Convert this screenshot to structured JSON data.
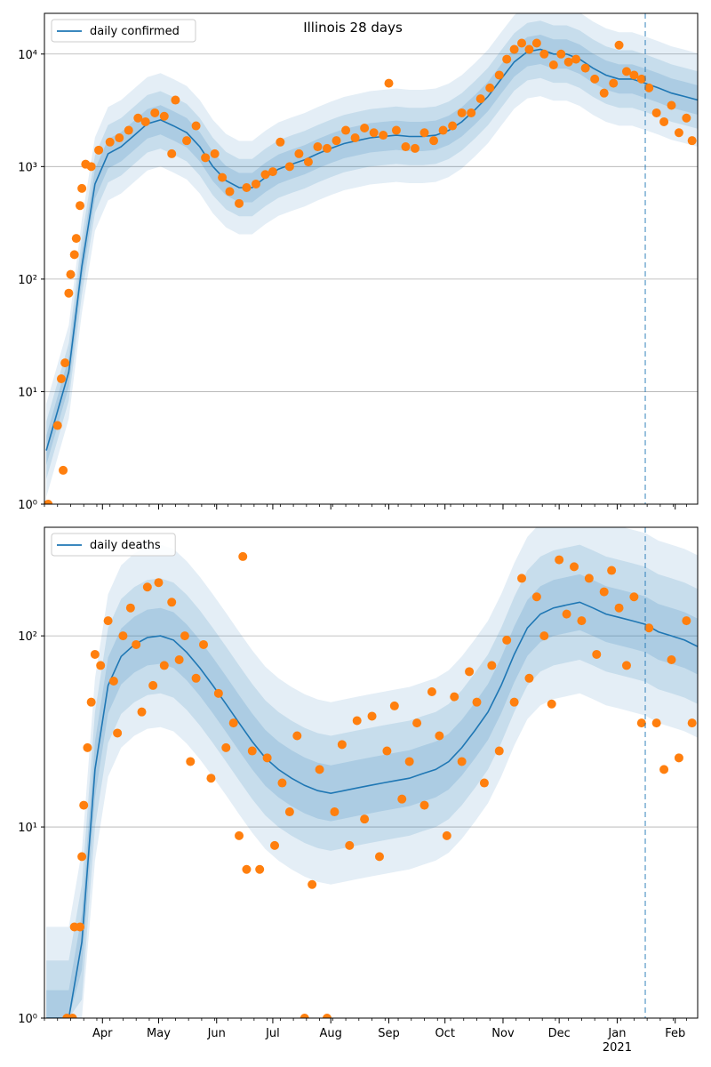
{
  "figure_title": "Illinois 28 days",
  "colors": {
    "line": "#1f77b4",
    "points": "#ff7f0e",
    "band": "#1f77b4",
    "grid": "#b0b0b0",
    "vline": "#1f77b4"
  },
  "chart_data": [
    {
      "type": "scatter",
      "title": "Illinois 28 days",
      "yscale": "log",
      "ylim": [
        1,
        23000
      ],
      "yticks": [
        {
          "value": 1,
          "label": "10⁰"
        },
        {
          "value": 10,
          "label": "10¹"
        },
        {
          "value": 100,
          "label": "10²"
        },
        {
          "value": 1000,
          "label": "10³"
        },
        {
          "value": 10000,
          "label": "10⁴"
        }
      ],
      "grid": "horizontal",
      "legend_position": "top-left",
      "series": [
        {
          "name": "daily confirmed",
          "kind": "line"
        }
      ],
      "x_dates": [
        "2020-03-02",
        "2020-03-14",
        "2020-03-21",
        "2020-03-28",
        "2020-04-04",
        "2020-04-11",
        "2020-04-18",
        "2020-04-25",
        "2020-05-02",
        "2020-05-09",
        "2020-05-16",
        "2020-05-23",
        "2020-05-30",
        "2020-06-06",
        "2020-06-13",
        "2020-06-20",
        "2020-06-27",
        "2020-07-04",
        "2020-07-11",
        "2020-07-18",
        "2020-07-25",
        "2020-08-01",
        "2020-08-08",
        "2020-08-15",
        "2020-08-22",
        "2020-08-29",
        "2020-09-05",
        "2020-09-12",
        "2020-09-19",
        "2020-09-26",
        "2020-10-03",
        "2020-10-10",
        "2020-10-17",
        "2020-10-24",
        "2020-10-31",
        "2020-11-07",
        "2020-11-14",
        "2020-11-21",
        "2020-11-28",
        "2020-12-05",
        "2020-12-12",
        "2020-12-19",
        "2020-12-26",
        "2021-01-02",
        "2021-01-09",
        "2021-01-16",
        "2021-01-23",
        "2021-01-30",
        "2021-02-06",
        "2021-02-13"
      ],
      "median": [
        3,
        15,
        130,
        700,
        1300,
        1500,
        1900,
        2400,
        2600,
        2300,
        2000,
        1500,
        1000,
        750,
        650,
        650,
        800,
        950,
        1050,
        1150,
        1300,
        1450,
        1600,
        1700,
        1800,
        1850,
        1900,
        1850,
        1850,
        1900,
        2100,
        2500,
        3200,
        4200,
        6000,
        8500,
        10500,
        11000,
        10000,
        10000,
        9000,
        7500,
        6500,
        6000,
        6000,
        5500,
        5000,
        4500,
        4200,
        3900
      ],
      "band_factors": [
        1.35,
        1.8,
        2.6
      ],
      "observed": [
        {
          "date": "2020-03-03",
          "y": 1
        },
        {
          "date": "2020-03-08",
          "y": 5
        },
        {
          "date": "2020-03-11",
          "y": 2
        },
        {
          "date": "2020-03-10",
          "y": 13
        },
        {
          "date": "2020-03-12",
          "y": 18
        },
        {
          "date": "2020-03-14",
          "y": 75
        },
        {
          "date": "2020-03-15",
          "y": 110
        },
        {
          "date": "2020-03-17",
          "y": 165
        },
        {
          "date": "2020-03-18",
          "y": 230
        },
        {
          "date": "2020-03-20",
          "y": 450
        },
        {
          "date": "2020-03-21",
          "y": 640
        },
        {
          "date": "2020-03-23",
          "y": 1050
        },
        {
          "date": "2020-03-26",
          "y": 1000
        },
        {
          "date": "2020-03-30",
          "y": 1400
        },
        {
          "date": "2020-04-05",
          "y": 1650
        },
        {
          "date": "2020-04-10",
          "y": 1800
        },
        {
          "date": "2020-04-15",
          "y": 2100
        },
        {
          "date": "2020-04-20",
          "y": 2700
        },
        {
          "date": "2020-04-24",
          "y": 2500
        },
        {
          "date": "2020-04-29",
          "y": 3000
        },
        {
          "date": "2020-05-04",
          "y": 2800
        },
        {
          "date": "2020-05-10",
          "y": 3900
        },
        {
          "date": "2020-05-08",
          "y": 1300
        },
        {
          "date": "2020-05-16",
          "y": 1700
        },
        {
          "date": "2020-05-21",
          "y": 2300
        },
        {
          "date": "2020-05-26",
          "y": 1200
        },
        {
          "date": "2020-05-31",
          "y": 1300
        },
        {
          "date": "2020-06-04",
          "y": 800
        },
        {
          "date": "2020-06-08",
          "y": 600
        },
        {
          "date": "2020-06-13",
          "y": 470
        },
        {
          "date": "2020-06-17",
          "y": 650
        },
        {
          "date": "2020-06-22",
          "y": 700
        },
        {
          "date": "2020-06-27",
          "y": 850
        },
        {
          "date": "2020-07-01",
          "y": 900
        },
        {
          "date": "2020-07-05",
          "y": 1650
        },
        {
          "date": "2020-07-10",
          "y": 1000
        },
        {
          "date": "2020-07-15",
          "y": 1300
        },
        {
          "date": "2020-07-20",
          "y": 1100
        },
        {
          "date": "2020-07-25",
          "y": 1500
        },
        {
          "date": "2020-07-30",
          "y": 1450
        },
        {
          "date": "2020-08-04",
          "y": 1700
        },
        {
          "date": "2020-08-09",
          "y": 2100
        },
        {
          "date": "2020-08-14",
          "y": 1800
        },
        {
          "date": "2020-08-19",
          "y": 2200
        },
        {
          "date": "2020-08-24",
          "y": 2000
        },
        {
          "date": "2020-08-29",
          "y": 1900
        },
        {
          "date": "2020-09-01",
          "y": 5500
        },
        {
          "date": "2020-09-05",
          "y": 2100
        },
        {
          "date": "2020-09-10",
          "y": 1500
        },
        {
          "date": "2020-09-15",
          "y": 1450
        },
        {
          "date": "2020-09-20",
          "y": 2000
        },
        {
          "date": "2020-09-25",
          "y": 1700
        },
        {
          "date": "2020-09-30",
          "y": 2100
        },
        {
          "date": "2020-10-05",
          "y": 2300
        },
        {
          "date": "2020-10-10",
          "y": 3000
        },
        {
          "date": "2020-10-15",
          "y": 3000
        },
        {
          "date": "2020-10-20",
          "y": 4000
        },
        {
          "date": "2020-10-25",
          "y": 5000
        },
        {
          "date": "2020-10-30",
          "y": 6500
        },
        {
          "date": "2020-11-03",
          "y": 9000
        },
        {
          "date": "2020-11-07",
          "y": 11000
        },
        {
          "date": "2020-11-11",
          "y": 12500
        },
        {
          "date": "2020-11-15",
          "y": 11000
        },
        {
          "date": "2020-11-19",
          "y": 12500
        },
        {
          "date": "2020-11-23",
          "y": 10000
        },
        {
          "date": "2020-11-28",
          "y": 8000
        },
        {
          "date": "2020-12-02",
          "y": 10000
        },
        {
          "date": "2020-12-06",
          "y": 8500
        },
        {
          "date": "2020-12-10",
          "y": 9000
        },
        {
          "date": "2020-12-15",
          "y": 7500
        },
        {
          "date": "2020-12-20",
          "y": 6000
        },
        {
          "date": "2020-12-25",
          "y": 4500
        },
        {
          "date": "2020-12-30",
          "y": 5500
        },
        {
          "date": "2021-01-02",
          "y": 12000
        },
        {
          "date": "2021-01-06",
          "y": 7000
        },
        {
          "date": "2021-01-10",
          "y": 6500
        },
        {
          "date": "2021-01-14",
          "y": 6000
        },
        {
          "date": "2021-01-18",
          "y": 5000
        },
        {
          "date": "2021-01-22",
          "y": 3000
        },
        {
          "date": "2021-01-26",
          "y": 2500
        },
        {
          "date": "2021-01-30",
          "y": 3500
        },
        {
          "date": "2021-02-03",
          "y": 2000
        },
        {
          "date": "2021-02-07",
          "y": 2700
        },
        {
          "date": "2021-02-10",
          "y": 1700
        }
      ]
    },
    {
      "type": "scatter",
      "yscale": "log",
      "ylim": [
        1,
        370
      ],
      "yticks": [
        {
          "value": 1,
          "label": "10⁰"
        },
        {
          "value": 10,
          "label": "10¹"
        },
        {
          "value": 100,
          "label": "10²"
        }
      ],
      "grid": "horizontal",
      "legend_position": "top-left",
      "series": [
        {
          "name": "daily deaths",
          "kind": "line"
        }
      ],
      "x_dates": [
        "2020-03-02",
        "2020-03-14",
        "2020-03-21",
        "2020-03-28",
        "2020-04-04",
        "2020-04-11",
        "2020-04-18",
        "2020-04-25",
        "2020-05-02",
        "2020-05-09",
        "2020-05-16",
        "2020-05-23",
        "2020-05-30",
        "2020-06-06",
        "2020-06-13",
        "2020-06-20",
        "2020-06-27",
        "2020-07-04",
        "2020-07-11",
        "2020-07-18",
        "2020-07-25",
        "2020-08-01",
        "2020-08-08",
        "2020-08-15",
        "2020-08-22",
        "2020-08-29",
        "2020-09-05",
        "2020-09-12",
        "2020-09-19",
        "2020-09-26",
        "2020-10-03",
        "2020-10-10",
        "2020-10-17",
        "2020-10-24",
        "2020-10-31",
        "2020-11-07",
        "2020-11-14",
        "2020-11-21",
        "2020-11-28",
        "2020-12-05",
        "2020-12-12",
        "2020-12-19",
        "2020-12-26",
        "2021-01-02",
        "2021-01-09",
        "2021-01-16",
        "2021-01-23",
        "2021-01-30",
        "2021-02-06",
        "2021-02-13"
      ],
      "median": [
        1,
        1,
        2.5,
        20,
        55,
        78,
        90,
        98,
        100,
        95,
        82,
        68,
        55,
        44,
        35,
        28,
        23,
        20,
        18,
        16.5,
        15.5,
        15,
        15.5,
        16,
        16.5,
        17,
        17.5,
        18,
        19,
        20,
        22,
        26,
        32,
        40,
        55,
        80,
        110,
        130,
        140,
        145,
        150,
        140,
        130,
        125,
        120,
        115,
        105,
        100,
        95,
        88
      ],
      "band_factors": [
        1.4,
        2.0,
        3.0
      ],
      "observed": [
        {
          "date": "2020-03-13",
          "y": 1
        },
        {
          "date": "2020-03-16",
          "y": 1
        },
        {
          "date": "2020-03-17",
          "y": 3
        },
        {
          "date": "2020-03-20",
          "y": 3
        },
        {
          "date": "2020-03-21",
          "y": 7
        },
        {
          "date": "2020-03-22",
          "y": 13
        },
        {
          "date": "2020-03-24",
          "y": 26
        },
        {
          "date": "2020-03-26",
          "y": 45
        },
        {
          "date": "2020-03-28",
          "y": 80
        },
        {
          "date": "2020-03-31",
          "y": 70
        },
        {
          "date": "2020-04-04",
          "y": 120
        },
        {
          "date": "2020-04-07",
          "y": 58
        },
        {
          "date": "2020-04-09",
          "y": 31
        },
        {
          "date": "2020-04-12",
          "y": 100
        },
        {
          "date": "2020-04-16",
          "y": 140
        },
        {
          "date": "2020-04-19",
          "y": 90
        },
        {
          "date": "2020-04-22",
          "y": 40
        },
        {
          "date": "2020-04-25",
          "y": 180
        },
        {
          "date": "2020-04-28",
          "y": 55
        },
        {
          "date": "2020-05-01",
          "y": 190
        },
        {
          "date": "2020-05-04",
          "y": 70
        },
        {
          "date": "2020-05-08",
          "y": 150
        },
        {
          "date": "2020-05-12",
          "y": 75
        },
        {
          "date": "2020-05-15",
          "y": 100
        },
        {
          "date": "2020-05-18",
          "y": 22
        },
        {
          "date": "2020-05-21",
          "y": 60
        },
        {
          "date": "2020-05-25",
          "y": 90
        },
        {
          "date": "2020-05-29",
          "y": 18
        },
        {
          "date": "2020-06-02",
          "y": 50
        },
        {
          "date": "2020-06-06",
          "y": 26
        },
        {
          "date": "2020-06-10",
          "y": 35
        },
        {
          "date": "2020-06-13",
          "y": 9
        },
        {
          "date": "2020-06-15",
          "y": 260
        },
        {
          "date": "2020-06-17",
          "y": 6
        },
        {
          "date": "2020-06-20",
          "y": 25
        },
        {
          "date": "2020-06-24",
          "y": 6
        },
        {
          "date": "2020-06-28",
          "y": 23
        },
        {
          "date": "2020-07-02",
          "y": 8
        },
        {
          "date": "2020-07-06",
          "y": 17
        },
        {
          "date": "2020-07-10",
          "y": 12
        },
        {
          "date": "2020-07-14",
          "y": 30
        },
        {
          "date": "2020-07-18",
          "y": 1
        },
        {
          "date": "2020-07-22",
          "y": 5
        },
        {
          "date": "2020-07-26",
          "y": 20
        },
        {
          "date": "2020-07-30",
          "y": 1
        },
        {
          "date": "2020-08-03",
          "y": 12
        },
        {
          "date": "2020-08-07",
          "y": 27
        },
        {
          "date": "2020-08-11",
          "y": 8
        },
        {
          "date": "2020-08-15",
          "y": 36
        },
        {
          "date": "2020-08-19",
          "y": 11
        },
        {
          "date": "2020-08-23",
          "y": 38
        },
        {
          "date": "2020-08-27",
          "y": 7
        },
        {
          "date": "2020-08-31",
          "y": 25
        },
        {
          "date": "2020-09-04",
          "y": 43
        },
        {
          "date": "2020-09-08",
          "y": 14
        },
        {
          "date": "2020-09-12",
          "y": 22
        },
        {
          "date": "2020-09-16",
          "y": 35
        },
        {
          "date": "2020-09-20",
          "y": 13
        },
        {
          "date": "2020-09-24",
          "y": 51
        },
        {
          "date": "2020-09-28",
          "y": 30
        },
        {
          "date": "2020-10-02",
          "y": 9
        },
        {
          "date": "2020-10-06",
          "y": 48
        },
        {
          "date": "2020-10-10",
          "y": 22
        },
        {
          "date": "2020-10-14",
          "y": 65
        },
        {
          "date": "2020-10-18",
          "y": 45
        },
        {
          "date": "2020-10-22",
          "y": 17
        },
        {
          "date": "2020-10-26",
          "y": 70
        },
        {
          "date": "2020-10-30",
          "y": 25
        },
        {
          "date": "2020-11-03",
          "y": 95
        },
        {
          "date": "2020-11-07",
          "y": 45
        },
        {
          "date": "2020-11-11",
          "y": 200
        },
        {
          "date": "2020-11-15",
          "y": 60
        },
        {
          "date": "2020-11-19",
          "y": 160
        },
        {
          "date": "2020-11-23",
          "y": 100
        },
        {
          "date": "2020-11-27",
          "y": 44
        },
        {
          "date": "2020-12-01",
          "y": 250
        },
        {
          "date": "2020-12-05",
          "y": 130
        },
        {
          "date": "2020-12-09",
          "y": 230
        },
        {
          "date": "2020-12-13",
          "y": 120
        },
        {
          "date": "2020-12-17",
          "y": 200
        },
        {
          "date": "2020-12-21",
          "y": 80
        },
        {
          "date": "2020-12-25",
          "y": 170
        },
        {
          "date": "2020-12-29",
          "y": 220
        },
        {
          "date": "2021-01-02",
          "y": 140
        },
        {
          "date": "2021-01-06",
          "y": 70
        },
        {
          "date": "2021-01-10",
          "y": 160
        },
        {
          "date": "2021-01-14",
          "y": 35
        },
        {
          "date": "2021-01-18",
          "y": 110
        },
        {
          "date": "2021-01-22",
          "y": 35
        },
        {
          "date": "2021-01-26",
          "y": 20
        },
        {
          "date": "2021-01-30",
          "y": 75
        },
        {
          "date": "2021-02-03",
          "y": 23
        },
        {
          "date": "2021-02-07",
          "y": 120
        },
        {
          "date": "2021-02-10",
          "y": 35
        }
      ]
    }
  ],
  "x_axis": {
    "start": "2020-03-01",
    "end": "2021-02-13",
    "month_ticks": [
      {
        "date": "2020-04-01",
        "label": "Apr"
      },
      {
        "date": "2020-05-01",
        "label": "May"
      },
      {
        "date": "2020-06-01",
        "label": "Jun"
      },
      {
        "date": "2020-07-01",
        "label": "Jul"
      },
      {
        "date": "2020-08-01",
        "label": "Aug"
      },
      {
        "date": "2020-09-01",
        "label": "Sep"
      },
      {
        "date": "2020-10-01",
        "label": "Oct"
      },
      {
        "date": "2020-11-01",
        "label": "Nov"
      },
      {
        "date": "2020-12-01",
        "label": "Dec"
      },
      {
        "date": "2021-01-01",
        "label": "Jan"
      },
      {
        "date": "2021-02-01",
        "label": "Feb"
      }
    ],
    "year_label": {
      "date": "2021-01-01",
      "label": "2021"
    },
    "forecast_start": "2021-01-16"
  }
}
